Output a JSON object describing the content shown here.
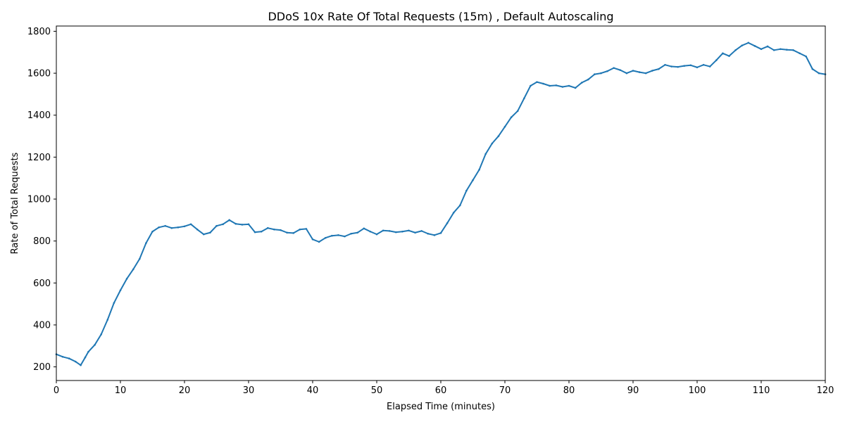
{
  "chart_data": {
    "type": "line",
    "title": "DDoS 10x Rate Of Total Requests (15m) , Default Autoscaling",
    "xlabel": "Elapsed Time (minutes)",
    "ylabel": "Rate of Total Requests",
    "xlim": [
      0,
      120
    ],
    "ylim": [
      135,
      1825
    ],
    "xticks": [
      0,
      10,
      20,
      30,
      40,
      50,
      60,
      70,
      80,
      90,
      100,
      110,
      120
    ],
    "yticks": [
      200,
      400,
      600,
      800,
      1000,
      1200,
      1400,
      1600,
      1800
    ],
    "grid": false,
    "legend": "none",
    "line_color": "#1f77b4",
    "series": [
      {
        "x": [
          0,
          1,
          2,
          3,
          3.8,
          4.5,
          5,
          6,
          7,
          8,
          9,
          10,
          11,
          12,
          13,
          14,
          15,
          16,
          17,
          18,
          19,
          20,
          21,
          22,
          23,
          24,
          25,
          26,
          27,
          28,
          29,
          30,
          31,
          32,
          33,
          34,
          35,
          36,
          37,
          38,
          39,
          40,
          41,
          42,
          43,
          44,
          45,
          46,
          47,
          48,
          49,
          50,
          51,
          52,
          53,
          54,
          55,
          56,
          57,
          58,
          59,
          60,
          61,
          62,
          63,
          64,
          65,
          66,
          67,
          68,
          69,
          70,
          71,
          72,
          73,
          74,
          75,
          76,
          77,
          78,
          79,
          80,
          81,
          82,
          83,
          84,
          85,
          86,
          87,
          88,
          89,
          90,
          91,
          92,
          93,
          94,
          95,
          96,
          97,
          98,
          99,
          100,
          101,
          102,
          103,
          104,
          105,
          106,
          107,
          108,
          109,
          110,
          111,
          112,
          113,
          114,
          115,
          116,
          117,
          118,
          119,
          120
        ],
        "values": [
          260,
          248,
          240,
          225,
          208,
          245,
          272,
          305,
          355,
          425,
          505,
          565,
          620,
          665,
          715,
          790,
          845,
          865,
          872,
          862,
          865,
          870,
          880,
          855,
          832,
          840,
          872,
          880,
          900,
          882,
          878,
          880,
          842,
          845,
          862,
          855,
          852,
          840,
          838,
          855,
          858,
          808,
          796,
          815,
          825,
          828,
          822,
          835,
          840,
          860,
          845,
          832,
          850,
          848,
          842,
          845,
          850,
          840,
          848,
          835,
          828,
          838,
          885,
          935,
          970,
          1040,
          1090,
          1140,
          1215,
          1265,
          1300,
          1345,
          1390,
          1420,
          1480,
          1540,
          1558,
          1550,
          1540,
          1542,
          1535,
          1540,
          1530,
          1555,
          1570,
          1595,
          1600,
          1610,
          1625,
          1615,
          1600,
          1612,
          1605,
          1600,
          1612,
          1620,
          1640,
          1632,
          1630,
          1635,
          1638,
          1628,
          1640,
          1632,
          1662,
          1695,
          1682,
          1710,
          1732,
          1745,
          1730,
          1715,
          1728,
          1710,
          1715,
          1712,
          1710,
          1695,
          1680,
          1620,
          1600,
          1595
        ]
      }
    ]
  }
}
